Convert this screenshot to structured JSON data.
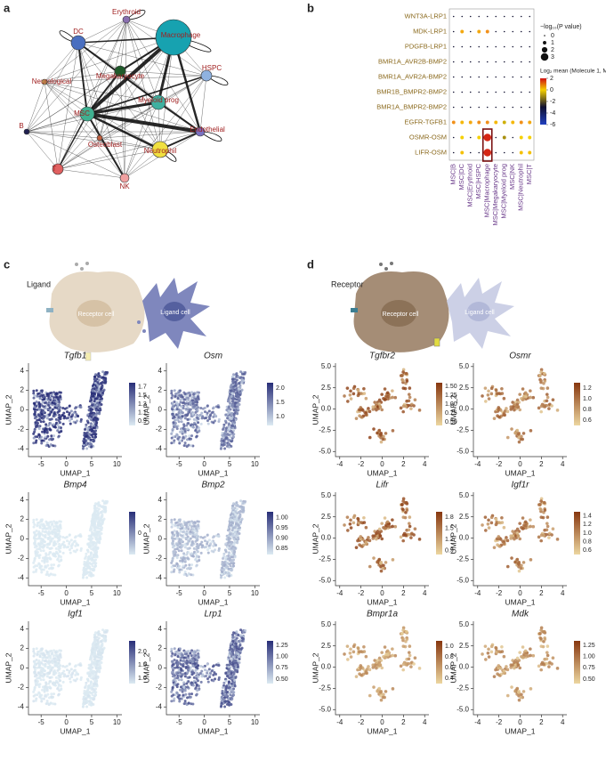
{
  "panel_labels": [
    "a",
    "b",
    "c",
    "d"
  ],
  "network": {
    "nodes": [
      "Erythroid",
      "Macrophage",
      "DC",
      "HSPC",
      "Megakaryocyte",
      "Myeloid prog",
      "Neurological",
      "MSC",
      "B",
      "Osteoblast",
      "Endothelial",
      "Neutrophil",
      "T",
      "NK"
    ]
  },
  "dotplot": {
    "rows": [
      "WNT3A-LRP1",
      "MDK-LRP1",
      "PDGFB-LRP1",
      "BMR1A_AVR2B-BMP2",
      "BMR1A_AVR2A-BMP2",
      "BMR1B_BMPR2-BMP2",
      "BMR1A_BMPR2-BMP2",
      "EGFR-TGFB1",
      "OSMR-OSM",
      "LIFR-OSM"
    ],
    "columns": [
      "MSC|B",
      "MSC|DC",
      "MSC|Erythroid",
      "MSC|HSPC",
      "MSC|Macrophage",
      "MSC|Megakaryocyte",
      "MSC|Myeloid prog",
      "MSC|NK",
      "MSC|Neutrophil",
      "MSC|T"
    ],
    "sizes": [
      [
        0,
        0,
        0,
        0,
        0,
        0,
        0,
        0,
        0,
        0
      ],
      [
        0,
        1,
        0,
        1,
        1,
        0,
        0,
        0,
        0,
        0
      ],
      [
        0,
        0,
        0,
        0,
        0,
        0,
        0,
        0,
        0,
        0
      ],
      [
        0,
        0,
        0,
        0,
        0,
        0,
        0,
        0,
        0,
        0
      ],
      [
        0,
        0,
        0,
        0,
        0,
        0,
        0,
        0,
        0,
        0
      ],
      [
        0,
        0,
        0,
        0,
        0,
        0,
        0,
        0,
        0,
        0
      ],
      [
        0,
        0,
        0,
        0,
        0,
        0,
        0,
        0,
        0,
        0
      ],
      [
        1,
        1,
        1,
        1,
        1,
        1,
        1,
        1,
        1,
        1
      ],
      [
        0,
        1,
        0,
        1,
        3,
        0,
        1,
        0,
        1,
        1
      ],
      [
        0,
        1,
        0,
        0,
        3,
        0,
        0,
        0,
        1,
        1
      ]
    ],
    "means": [
      [
        -3,
        -3,
        -3,
        -3,
        -3,
        -3,
        -3,
        -3,
        -3,
        -3
      ],
      [
        -3,
        0.5,
        -3,
        0.5,
        0.8,
        -3,
        -3,
        -3,
        -3,
        -3
      ],
      [
        -3,
        -3,
        -3,
        -3,
        -3,
        -3,
        -3,
        -3,
        -3,
        -3
      ],
      [
        -3,
        -3,
        -3,
        -3,
        -3,
        -3,
        -3,
        -3,
        -3,
        -3
      ],
      [
        -3,
        -3,
        -3,
        -3,
        -3,
        -3,
        -3,
        -3,
        -3,
        -3
      ],
      [
        -3,
        -3,
        -3,
        -3,
        -3,
        -3,
        -3,
        -3,
        -3,
        -3
      ],
      [
        -3,
        -3,
        -3,
        -3,
        -3,
        -3,
        -3,
        -3,
        -3,
        -3
      ],
      [
        0.8,
        0.3,
        0.5,
        0.8,
        0.8,
        0.3,
        -0.5,
        0.3,
        0.8,
        0.5
      ],
      [
        -3,
        0,
        -3,
        0,
        1.8,
        -3,
        -1,
        -3,
        0,
        0
      ],
      [
        -3,
        0.2,
        -3,
        -3,
        1.8,
        -3,
        -3,
        -3,
        0.2,
        0.2
      ]
    ],
    "size_legend": {
      "title": "−log₁₀(P value)",
      "values": [
        0,
        1,
        2,
        3
      ]
    },
    "color_legend": {
      "title": "Log₂ mean (Molecule 1, Molecule 2)",
      "lim": [
        -6,
        2
      ],
      "ticks": [
        2,
        0,
        -2,
        -4,
        -6
      ]
    }
  },
  "ligand": {
    "title": "Ligand",
    "receptor_cell": "Receptor cell",
    "ligand_cell": "Ligand cell",
    "xlabel": "UMAP_1",
    "ylabel": "UMAP_2",
    "xlim": [
      -7.5,
      11
    ],
    "ylim": [
      -4.8,
      4.8
    ],
    "xticks": [
      -5,
      0,
      5,
      10
    ],
    "yticks": [
      -4,
      -2,
      0,
      2,
      4
    ],
    "plots": [
      {
        "gene": "Tgfb1",
        "clim": [
          0.8,
          1.8
        ],
        "cticks": [
          1.7,
          1.5,
          1.3,
          1.1,
          0.9
        ]
      },
      {
        "gene": "Osm",
        "clim": [
          0.7,
          2.2
        ],
        "cticks": [
          {
            "value": 2,
            "label": "2.0"
          },
          1.5,
          {
            "value": 1,
            "label": "1.0"
          }
        ]
      },
      {
        "gene": "Bmp4",
        "clim": [
          -0.5,
          0.5
        ],
        "cticks": [
          0
        ]
      },
      {
        "gene": "Bmp2",
        "clim": [
          0.82,
          1.03
        ],
        "cticks": [
          {
            "value": 1,
            "label": "1.00"
          },
          0.95,
          {
            "value": 0.9,
            "label": "0.90"
          },
          0.85
        ]
      },
      {
        "gene": "Igf1",
        "clim": [
          0.8,
          2.4
        ],
        "cticks": [
          {
            "value": 2,
            "label": "2.0"
          },
          1.5,
          {
            "value": 1,
            "label": "1.0"
          }
        ]
      },
      {
        "gene": "Lrp1",
        "clim": [
          0.4,
          1.35
        ],
        "cticks": [
          1.25,
          {
            "value": 1,
            "label": "1.00"
          },
          0.75,
          {
            "value": 0.5,
            "label": "0.50"
          }
        ]
      }
    ]
  },
  "receptor": {
    "title": "Receptor",
    "receptor_cell": "Receptor cell",
    "ligand_cell": "Ligand cell",
    "xlabel": "UMAP_1",
    "ylabel": "UMAP_2",
    "xlim": [
      -4.4,
      4.4
    ],
    "ylim": [
      -5.6,
      5.4
    ],
    "xticks": [
      -4,
      -2,
      0,
      2,
      4
    ],
    "yticks": [
      {
        "value": -5,
        "label": "-5.0"
      },
      -2.5,
      {
        "value": 0,
        "label": "0.0"
      },
      2.5,
      {
        "value": 5,
        "label": "5.0"
      }
    ],
    "plots": [
      {
        "gene": "Tgfbr2",
        "clim": [
          0.4,
          1.6
        ],
        "cticks": [
          {
            "value": 1.5,
            "label": "1.50"
          },
          1.25,
          {
            "value": 1,
            "label": "1.00"
          },
          0.75,
          {
            "value": 0.5,
            "label": "0.50"
          }
        ]
      },
      {
        "gene": "Osmr",
        "clim": [
          0.5,
          1.3
        ],
        "cticks": [
          1.2,
          {
            "value": 1,
            "label": "1.0"
          },
          0.8,
          0.6
        ]
      },
      {
        "gene": "Lifr",
        "clim": [
          0.8,
          1.95
        ],
        "cticks": [
          1.8,
          1.5,
          1.2,
          0.9
        ]
      },
      {
        "gene": "Igf1r",
        "clim": [
          0.5,
          1.5
        ],
        "cticks": [
          1.4,
          1.2,
          {
            "value": 1,
            "label": "1.0"
          },
          0.8,
          0.6
        ]
      },
      {
        "gene": "Bmpr1a",
        "clim": [
          0.3,
          1.1
        ],
        "cticks": [
          {
            "value": 1,
            "label": "1.0"
          },
          0.8,
          0.6,
          0.4
        ]
      },
      {
        "gene": "Mdk",
        "clim": [
          0.4,
          1.35
        ],
        "cticks": [
          1.25,
          {
            "value": 1,
            "label": "1.00"
          },
          0.75,
          {
            "value": 0.5,
            "label": "0.50"
          }
        ]
      }
    ]
  }
}
